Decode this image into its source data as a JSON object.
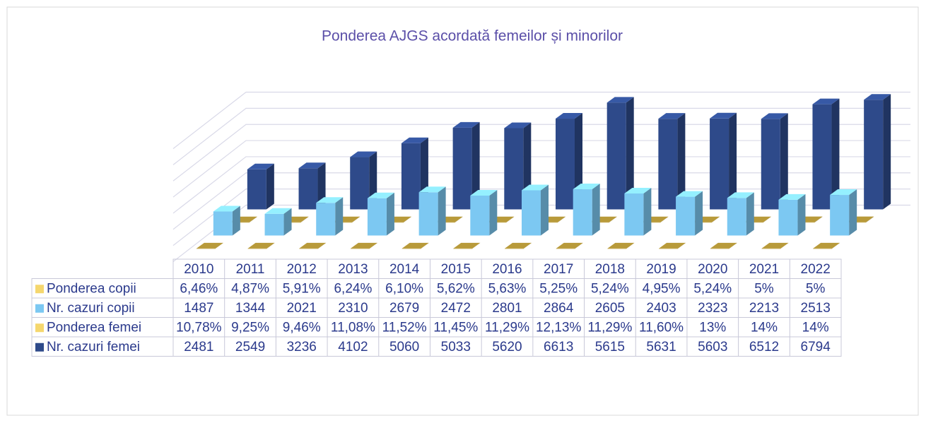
{
  "chart_data": {
    "type": "bar3d",
    "title": "Ponderea AJGS acordată femeilor și minorilor",
    "categories": [
      "2010",
      "2011",
      "2012",
      "2013",
      "2014",
      "2015",
      "2016",
      "2017",
      "2018",
      "2019",
      "2020",
      "2021",
      "2022"
    ],
    "series": [
      {
        "name": "Ponderea copii",
        "color": "#f5d76e",
        "values": [
          6.46,
          4.87,
          5.91,
          6.24,
          6.1,
          5.62,
          5.63,
          5.25,
          5.24,
          4.95,
          5.24,
          5,
          5
        ],
        "value_labels": [
          "6,46%",
          "4,87%",
          "5,91%",
          "6,24%",
          "6,10%",
          "5,62%",
          "5,63%",
          "5,25%",
          "5,24%",
          "4,95%",
          "5,24%",
          "5%",
          "5%"
        ]
      },
      {
        "name": "Nr. cazuri copii",
        "color": "#7cc8f2",
        "values": [
          1487,
          1344,
          2021,
          2310,
          2679,
          2472,
          2801,
          2864,
          2605,
          2403,
          2323,
          2213,
          2513
        ]
      },
      {
        "name": "Ponderea femei",
        "color": "#f5d76e",
        "values": [
          10.78,
          9.25,
          9.46,
          11.08,
          11.52,
          11.45,
          11.29,
          12.13,
          11.29,
          11.6,
          13,
          14,
          14
        ],
        "value_labels": [
          "10,78%",
          "9,25%",
          "9,46%",
          "11,08%",
          "11,52%",
          "11,45%",
          "11,29%",
          "12,13%",
          "11,29%",
          "11,60%",
          "13%",
          "14%",
          "14%"
        ]
      },
      {
        "name": "Nr. cazuri femei",
        "color": "#2e4a8a",
        "values": [
          2481,
          2549,
          3236,
          4102,
          5060,
          5033,
          5620,
          6613,
          5615,
          5631,
          5603,
          6512,
          6794
        ]
      }
    ],
    "ylim": [
      0,
      7000
    ],
    "yticks": [
      0,
      1000,
      2000,
      3000,
      4000,
      5000,
      6000,
      7000
    ],
    "grid": true
  }
}
